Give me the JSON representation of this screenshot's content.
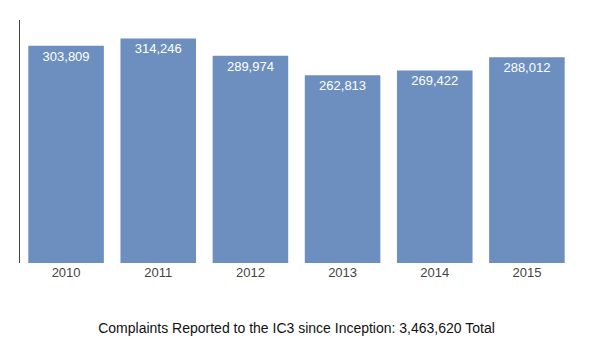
{
  "chart_data": {
    "type": "bar",
    "title": "Complaints Reported to the IC3 since Inception: 3,463,620 Total",
    "categories": [
      "2010",
      "2011",
      "2012",
      "2013",
      "2014",
      "2015"
    ],
    "values": [
      303809,
      314246,
      289974,
      262813,
      269422,
      288012
    ],
    "value_labels": [
      "303,809",
      "314,246",
      "289,974",
      "262,813",
      "269,422",
      "288,012"
    ],
    "color": "#6d8fbf",
    "ylim": [
      0,
      340000
    ],
    "grid": false,
    "data_labels": true,
    "tick_labels": "x"
  }
}
